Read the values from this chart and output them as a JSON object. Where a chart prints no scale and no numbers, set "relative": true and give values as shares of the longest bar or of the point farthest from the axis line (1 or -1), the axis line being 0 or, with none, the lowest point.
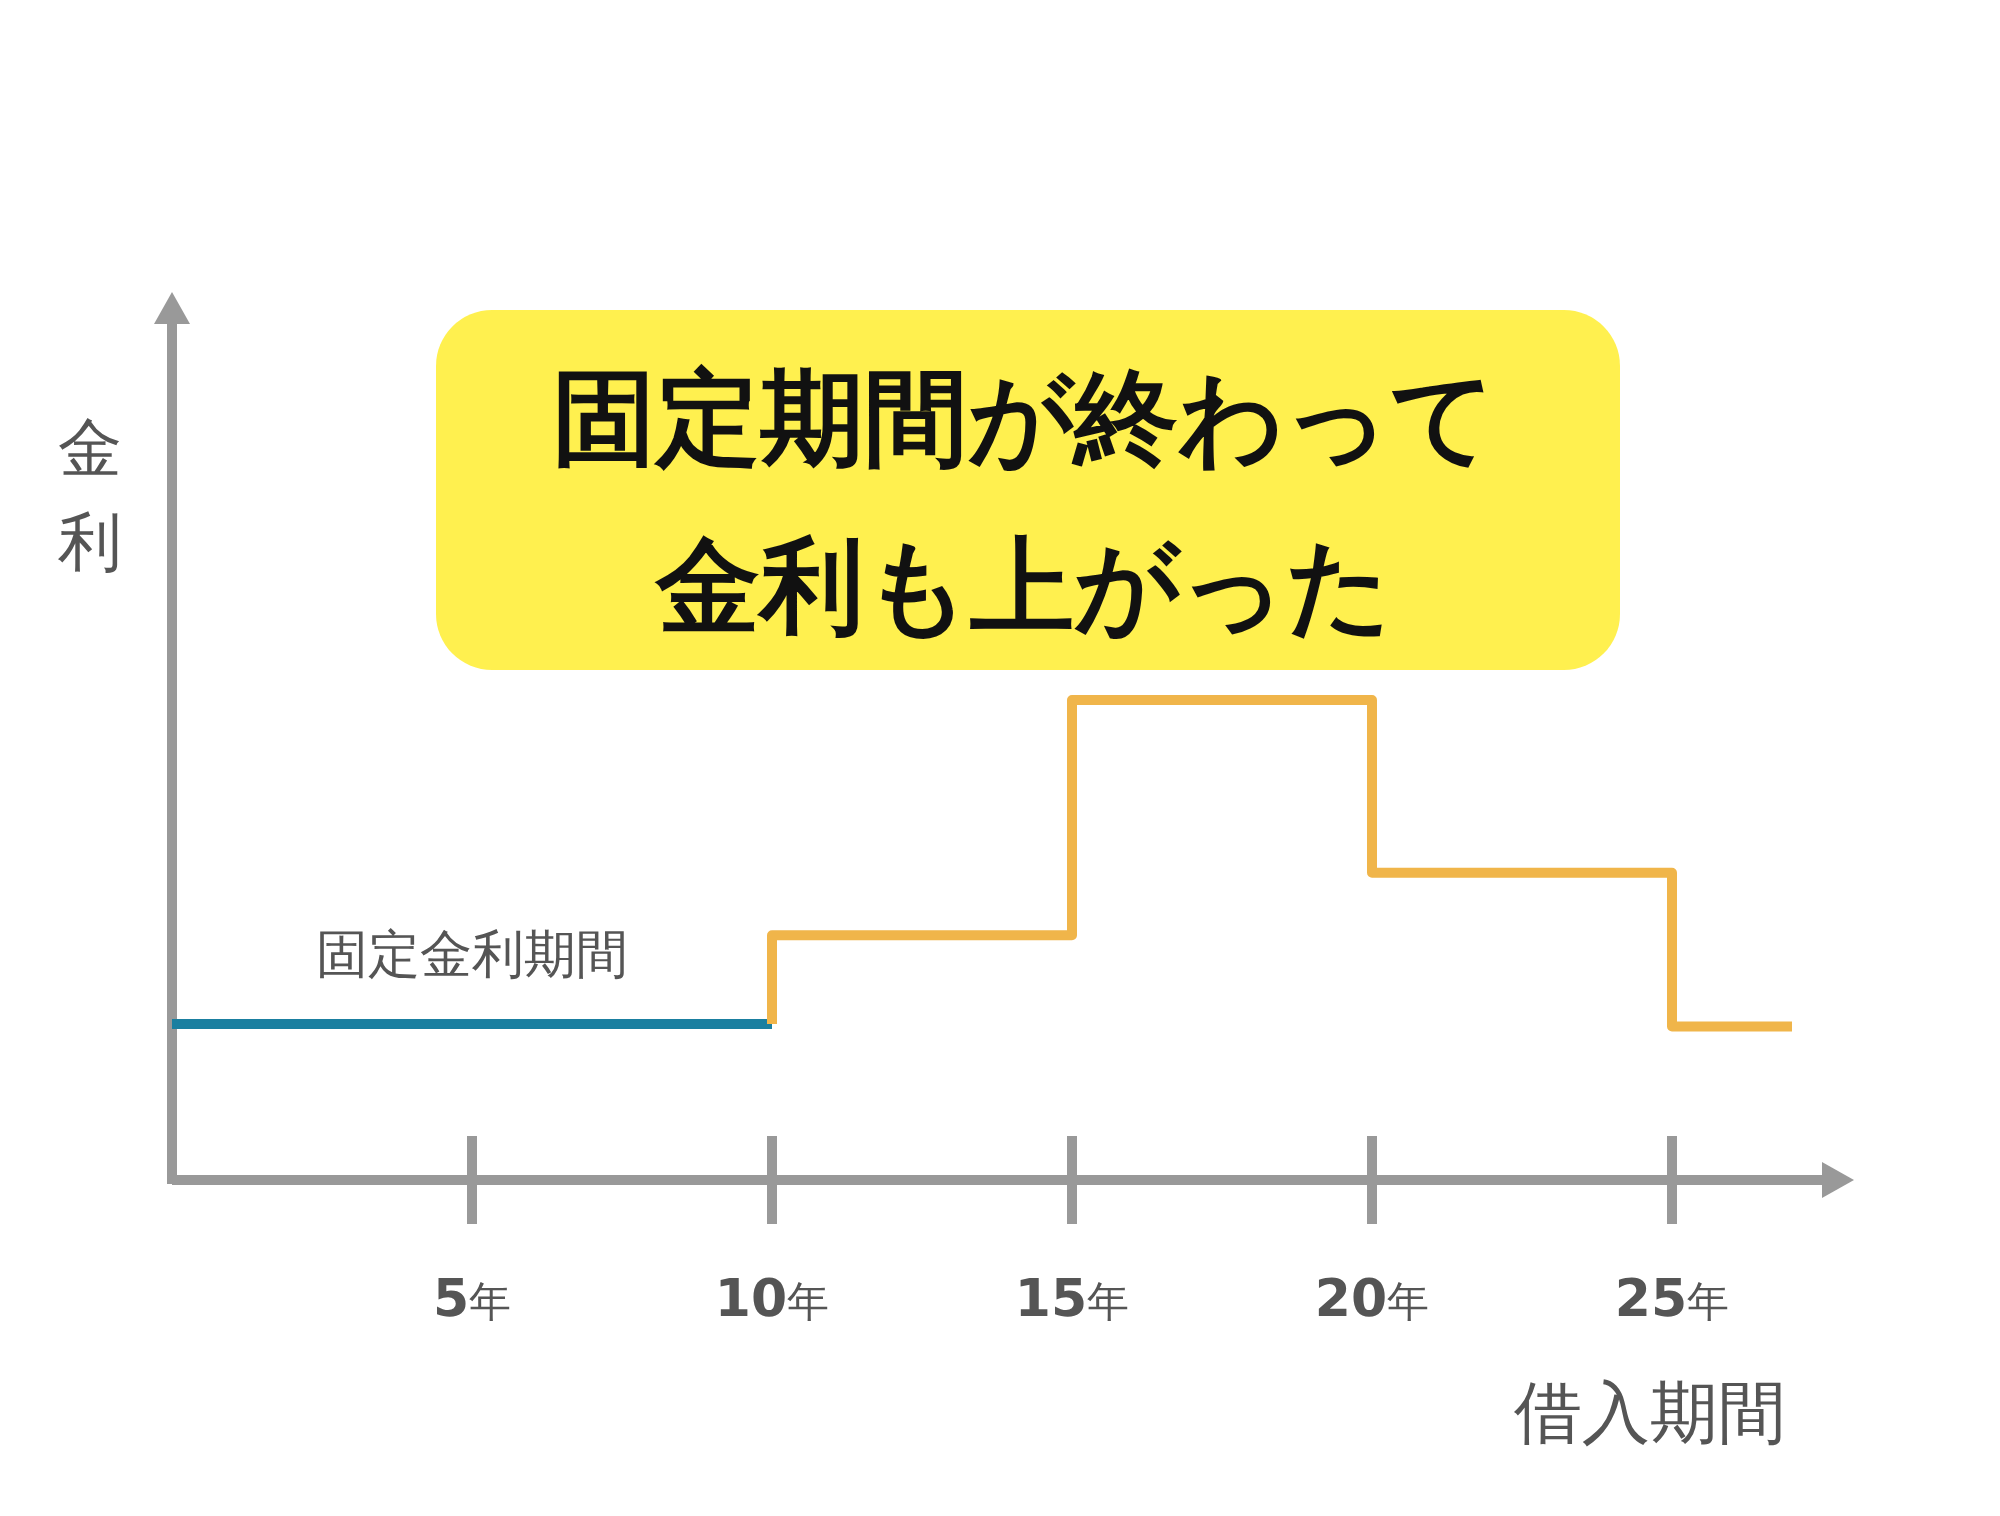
{
  "chart_data": {
    "type": "step",
    "relative": true,
    "xlabel": "借入期間",
    "ylabel": "金利",
    "tick_labels": "x",
    "xlim": [
      0,
      27.5
    ],
    "xticks": [
      {
        "value": 5,
        "label": "5年"
      },
      {
        "value": 10,
        "label": "10年"
      },
      {
        "value": 15,
        "label": "15年"
      },
      {
        "value": 20,
        "label": "20年"
      },
      {
        "value": 25,
        "label": "25年"
      }
    ],
    "series": [
      {
        "name": "固定金利期間",
        "color": "#1a7fa0",
        "x": [
          0,
          10
        ],
        "values": [
          0.325,
          0.325
        ]
      },
      {
        "color": "#f0b54a",
        "x": [
          10,
          10,
          15,
          20,
          25,
          27
        ],
        "values": [
          0.325,
          0.51,
          1,
          0.64,
          0.32,
          0.32
        ]
      }
    ],
    "annotations": [
      "固定期間が終わって金利も上がった"
    ]
  }
}
